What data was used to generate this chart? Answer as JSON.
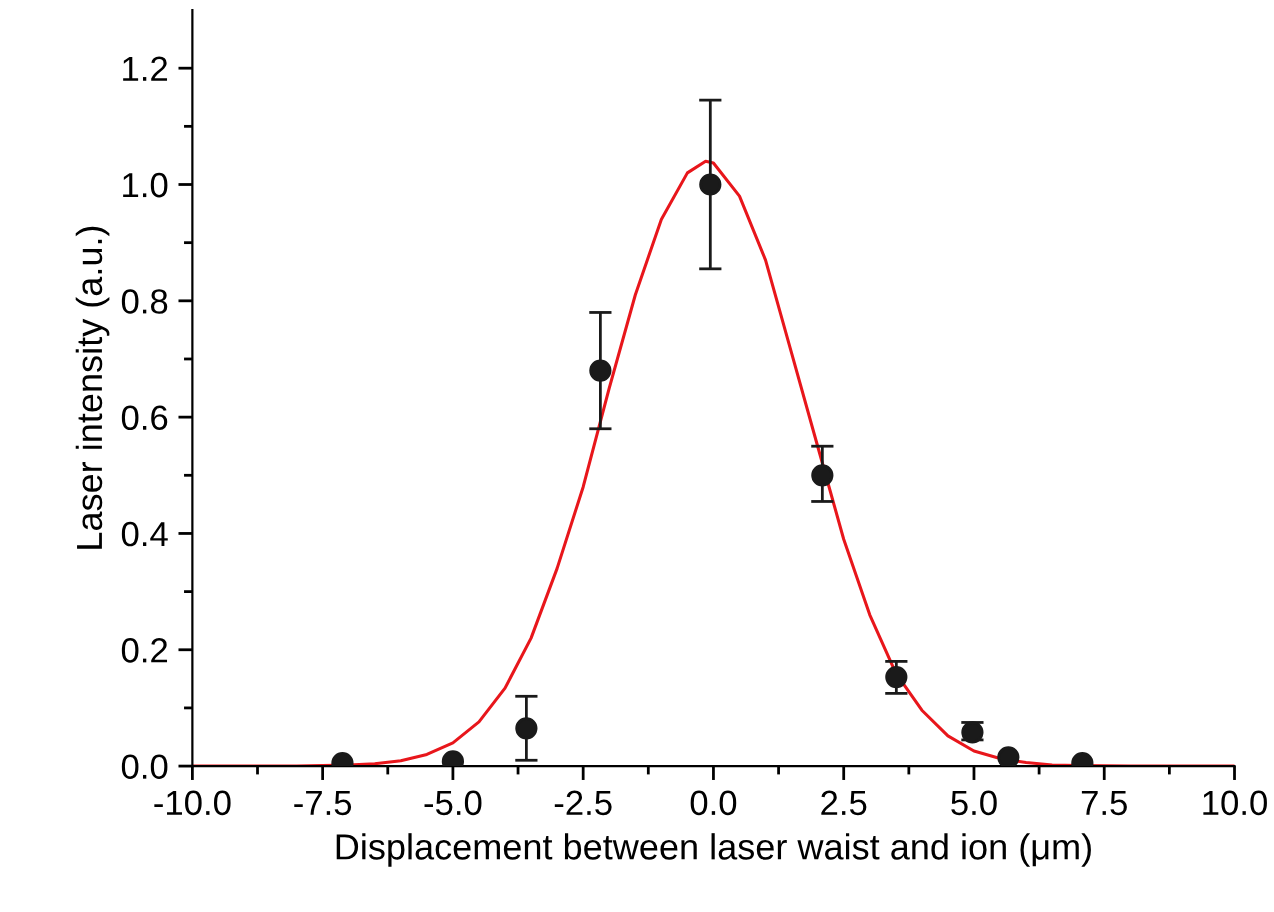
{
  "chart_data": {
    "type": "scatter",
    "xlabel": "Displacement between laser waist and ion (μm)",
    "ylabel": "Laser intensity (a.u.)",
    "series": [
      {
        "color": "#1a1a1a",
        "marker": "circle",
        "x": [
          -7.12,
          -5.0,
          -3.59,
          -2.17,
          -0.06,
          2.09,
          3.51,
          4.97,
          5.66,
          7.08
        ],
        "values": [
          0.005,
          0.008,
          0.065,
          0.68,
          1.0,
          0.5,
          0.153,
          0.058,
          0.015,
          0.005
        ],
        "errors": [
          null,
          null,
          [
            0.01,
            0.12
          ],
          [
            0.58,
            0.78
          ],
          [
            0.855,
            1.145
          ],
          [
            0.455,
            0.55
          ],
          [
            0.125,
            0.18
          ],
          [
            0.045,
            0.075
          ],
          null,
          null
        ]
      },
      {
        "type": "line",
        "color": "#e8161b",
        "marker": "none",
        "x": [
          -10,
          -9,
          -8,
          -7,
          -6.5,
          -6,
          -5.5,
          -5,
          -4.5,
          -4,
          -3.5,
          -3,
          -2.5,
          -2,
          -1.5,
          -1,
          -0.5,
          -0.15,
          0,
          0.5,
          1,
          1.5,
          2,
          2.5,
          3,
          3.5,
          4,
          4.5,
          5,
          5.5,
          6,
          6.5,
          7,
          8,
          9,
          10
        ],
        "values": [
          0,
          0,
          0,
          0.002,
          0.004,
          0.009,
          0.02,
          0.04,
          0.076,
          0.134,
          0.22,
          0.34,
          0.48,
          0.65,
          0.81,
          0.94,
          1.02,
          1.04,
          1.037,
          0.98,
          0.87,
          0.71,
          0.55,
          0.39,
          0.26,
          0.16,
          0.096,
          0.052,
          0.026,
          0.013,
          0.006,
          0.002,
          0.001,
          0,
          0,
          0
        ]
      }
    ],
    "xlim": [
      -10,
      10
    ],
    "ylim": [
      0,
      1.3
    ],
    "xticks": [
      {
        "value": -10,
        "label": "-10.0"
      },
      {
        "value": -7.5,
        "label": "-7.5"
      },
      {
        "value": -5,
        "label": "-5.0"
      },
      {
        "value": -2.5,
        "label": "-2.5"
      },
      {
        "value": 0,
        "label": "0.0"
      },
      {
        "value": 2.5,
        "label": "2.5"
      },
      {
        "value": 5,
        "label": "5.0"
      },
      {
        "value": 7.5,
        "label": "7.5"
      },
      {
        "value": 10,
        "label": "10.0"
      }
    ],
    "yticks": [
      {
        "value": 0,
        "label": "0.0"
      },
      {
        "value": 0.2,
        "label": "0.2"
      },
      {
        "value": 0.4,
        "label": "0.4"
      },
      {
        "value": 0.6,
        "label": "0.6"
      },
      {
        "value": 0.8,
        "label": "0.8"
      },
      {
        "value": 1.0,
        "label": "1.0"
      },
      {
        "value": 1.2,
        "label": "1.2"
      }
    ],
    "grid": false,
    "legend": false
  }
}
